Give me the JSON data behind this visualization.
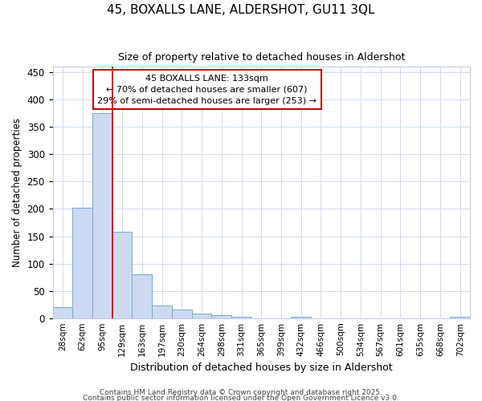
{
  "title": "45, BOXALLS LANE, ALDERSHOT, GU11 3QL",
  "subtitle": "Size of property relative to detached houses in Aldershot",
  "xlabel": "Distribution of detached houses by size in Aldershot",
  "ylabel": "Number of detached properties",
  "categories": [
    "28sqm",
    "62sqm",
    "95sqm",
    "129sqm",
    "163sqm",
    "197sqm",
    "230sqm",
    "264sqm",
    "298sqm",
    "331sqm",
    "365sqm",
    "399sqm",
    "432sqm",
    "466sqm",
    "500sqm",
    "534sqm",
    "567sqm",
    "601sqm",
    "635sqm",
    "668sqm",
    "702sqm"
  ],
  "values": [
    20,
    202,
    375,
    158,
    80,
    23,
    16,
    8,
    5,
    3,
    0,
    0,
    2,
    0,
    0,
    0,
    0,
    0,
    0,
    0,
    2
  ],
  "bar_color": "#ccd9f0",
  "bar_edge_color": "#7aaad0",
  "vline_index": 3,
  "vline_color": "#cc0000",
  "annotation_title": "45 BOXALLS LANE: 133sqm",
  "annotation_line1": "← 70% of detached houses are smaller (607)",
  "annotation_line2": "29% of semi-detached houses are larger (253) →",
  "annotation_box_color": "#ffffff",
  "annotation_box_edge_color": "#cc0000",
  "ylim": [
    0,
    460
  ],
  "background_color": "#ffffff",
  "grid_color": "#d0daf0",
  "footer1": "Contains HM Land Registry data © Crown copyright and database right 2025.",
  "footer2": "Contains public sector information licensed under the Open Government Licence v3.0."
}
